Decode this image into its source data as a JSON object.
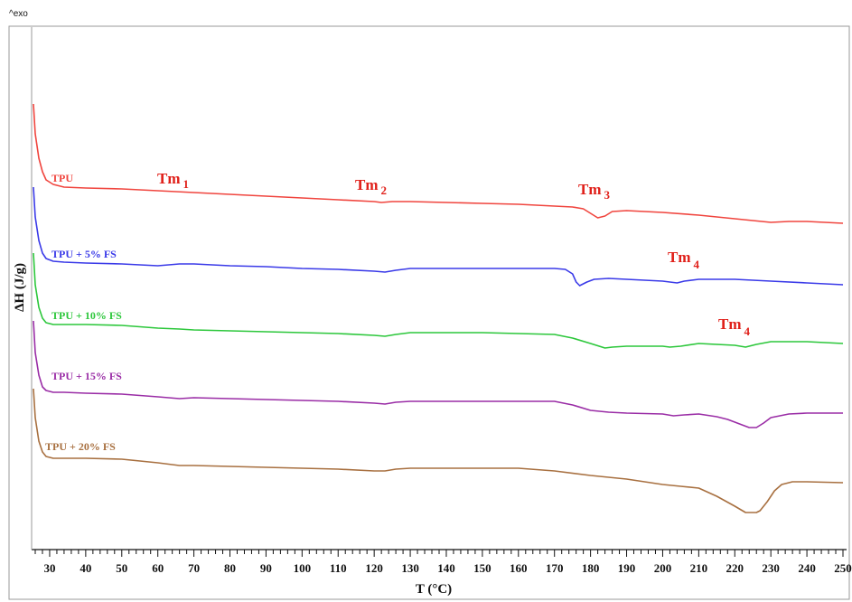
{
  "chart_data": {
    "type": "line",
    "exo_marker": "^exo",
    "xlabel": "T (°C)",
    "ylabel": "ΔH (J/g)",
    "xlim": [
      25,
      250
    ],
    "x_ticks": [
      30,
      40,
      50,
      60,
      70,
      80,
      90,
      100,
      110,
      120,
      130,
      140,
      150,
      160,
      170,
      180,
      190,
      200,
      210,
      220,
      230,
      240,
      250
    ],
    "x_tick_labels": [
      "30",
      "40",
      "50",
      "60",
      "70",
      "80",
      "90",
      "100",
      "110",
      "120",
      "130",
      "140",
      "150",
      "160",
      "170",
      "180",
      "190",
      "200",
      "210",
      "220",
      "230",
      "240",
      "250"
    ],
    "y_ticks_labeled": false,
    "grid": false,
    "series": [
      {
        "name": "TPU",
        "color": "#f0453e",
        "x": [
          25.5,
          26,
          27,
          28,
          29,
          31,
          34,
          40,
          50,
          60,
          70,
          80,
          90,
          100,
          110,
          120,
          122,
          125,
          130,
          140,
          150,
          160,
          170,
          175,
          178,
          180,
          182,
          184,
          186,
          190,
          200,
          210,
          220,
          230,
          235,
          240,
          250
        ],
        "y": [
          115,
          148,
          175,
          190,
          199,
          204,
          207,
          208,
          209,
          211,
          213,
          215,
          217,
          219,
          221,
          223,
          224,
          223,
          223,
          224,
          225,
          226,
          228,
          229,
          231,
          236,
          241,
          239,
          234,
          233,
          235,
          238,
          242,
          246,
          245,
          245,
          247
        ]
      },
      {
        "name": "TPU + 5% FS",
        "color": "#3a3ae8",
        "x": [
          25.5,
          26,
          27,
          28,
          29,
          31,
          34,
          40,
          50,
          60,
          66,
          70,
          80,
          90,
          100,
          110,
          120,
          123,
          126,
          130,
          140,
          150,
          160,
          170,
          173,
          175,
          176,
          177,
          178,
          179,
          181,
          185,
          190,
          200,
          204,
          206,
          210,
          220,
          230,
          240,
          250
        ],
        "y": [
          207,
          240,
          266,
          280,
          286,
          289,
          290,
          291,
          292,
          294,
          292,
          292,
          294,
          295,
          297,
          298,
          300,
          301,
          299,
          297,
          297,
          297,
          297,
          297,
          298,
          303,
          312,
          316,
          314,
          312,
          309,
          308,
          309,
          311,
          313,
          311,
          309,
          309,
          311,
          313,
          315
        ]
      },
      {
        "name": "TPU + 10% FS",
        "color": "#2cc73b",
        "x": [
          25.5,
          26,
          27,
          28,
          29,
          31,
          34,
          40,
          50,
          60,
          66,
          70,
          80,
          90,
          100,
          110,
          120,
          123,
          126,
          130,
          140,
          150,
          160,
          170,
          175,
          180,
          184,
          186,
          190,
          200,
          202,
          205,
          210,
          220,
          223,
          226,
          230,
          240,
          250
        ],
        "y": [
          280,
          315,
          340,
          352,
          357,
          359,
          359,
          359,
          360,
          363,
          364,
          365,
          366,
          367,
          368,
          369,
          371,
          372,
          370,
          368,
          368,
          368,
          369,
          370,
          374,
          380,
          385,
          384,
          383,
          383,
          384,
          383,
          380,
          382,
          384,
          381,
          378,
          378,
          380
        ]
      },
      {
        "name": "TPU + 15% FS",
        "color": "#9a2da6",
        "x": [
          25.5,
          26,
          27,
          28,
          29,
          31,
          34,
          40,
          50,
          60,
          66,
          70,
          80,
          90,
          100,
          110,
          120,
          123,
          126,
          130,
          140,
          150,
          160,
          170,
          175,
          180,
          185,
          190,
          200,
          203,
          206,
          210,
          215,
          218,
          220,
          222,
          224,
          226,
          228,
          230,
          235,
          240,
          250
        ],
        "y": [
          355,
          390,
          415,
          428,
          432,
          434,
          434,
          435,
          436,
          439,
          441,
          440,
          441,
          442,
          443,
          444,
          446,
          447,
          445,
          444,
          444,
          444,
          444,
          444,
          448,
          454,
          456,
          457,
          458,
          460,
          459,
          458,
          461,
          464,
          467,
          470,
          473,
          473,
          468,
          462,
          458,
          457,
          457
        ]
      },
      {
        "name": "TPU + 20% FS",
        "color": "#a87040",
        "x": [
          25.5,
          26,
          27,
          28,
          29,
          31,
          34,
          40,
          50,
          60,
          66,
          70,
          80,
          90,
          100,
          110,
          120,
          123,
          126,
          130,
          140,
          150,
          160,
          170,
          180,
          190,
          200,
          205,
          210,
          215,
          220,
          223,
          226,
          227,
          229,
          231,
          233,
          236,
          240,
          250
        ],
        "y": [
          430,
          462,
          488,
          500,
          505,
          507,
          507,
          507,
          508,
          512,
          515,
          515,
          516,
          517,
          518,
          519,
          521,
          521,
          519,
          518,
          518,
          518,
          518,
          521,
          526,
          530,
          536,
          538,
          540,
          549,
          560,
          567,
          567,
          565,
          555,
          543,
          536,
          533,
          533,
          534
        ]
      }
    ],
    "series_labels": [
      {
        "text": "TPU",
        "series": 0
      },
      {
        "text": "TPU + 5% FS",
        "series": 1
      },
      {
        "text": "TPU + 10% FS",
        "series": 2
      },
      {
        "text": "TPU + 15% FS",
        "series": 3
      },
      {
        "text": "TPU + 20% FS",
        "series": 4
      }
    ],
    "annotations": [
      {
        "main": "Tm",
        "sub": "1"
      },
      {
        "main": "Tm",
        "sub": "2"
      },
      {
        "main": "Tm",
        "sub": "3"
      },
      {
        "main": "Tm",
        "sub": "4"
      },
      {
        "main": "Tm",
        "sub": "4"
      }
    ]
  }
}
